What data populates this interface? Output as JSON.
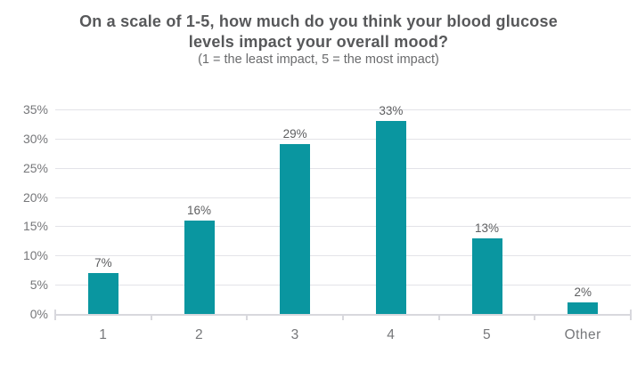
{
  "colors": {
    "bar": "#0a96a0",
    "grid": "#e3e3e8",
    "axis": "#d8d8dd",
    "title": "#57585a",
    "subtitle": "#6a6b6d",
    "tick_label": "#76777a",
    "value_label": "#5d5e60"
  },
  "chart_data": {
    "type": "bar",
    "title": "On a scale of 1-5, how much do you think your blood glucose levels impact your overall mood?",
    "subtitle": "(1 = the least impact, 5 = the most impact)",
    "categories": [
      "1",
      "2",
      "3",
      "4",
      "5",
      "Other"
    ],
    "values": [
      7,
      16,
      29,
      33,
      13,
      2
    ],
    "value_labels": [
      "7%",
      "16%",
      "29%",
      "33%",
      "13%",
      "2%"
    ],
    "xlabel": "",
    "ylabel": "",
    "ylim": [
      0,
      35
    ],
    "ytick_step": 5,
    "ytick_labels": [
      "0%",
      "5%",
      "10%",
      "15%",
      "20%",
      "25%",
      "30%",
      "35%"
    ],
    "grid": true,
    "legend": false
  }
}
